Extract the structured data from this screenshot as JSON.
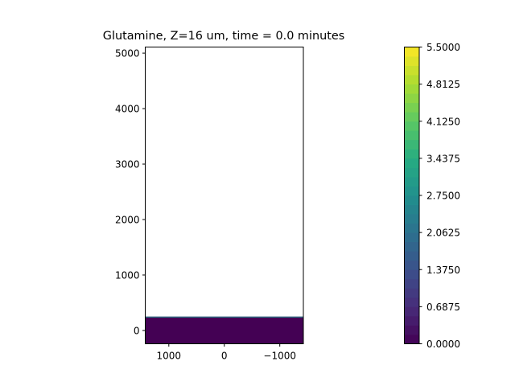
{
  "chart_data": [
    {
      "type": "heatmap",
      "title": "Glutamine, Z=16 um, time = 0.0 minutes",
      "xlabel": "",
      "ylabel": "",
      "x_axis_inverted": true,
      "xlim": [
        1425,
        -1425
      ],
      "ylim": [
        -240,
        5110
      ],
      "x_ticks": [
        1000,
        0,
        -1000
      ],
      "x_tick_labels": [
        "1000",
        "0",
        "−1000"
      ],
      "y_ticks": [
        0,
        1000,
        2000,
        3000,
        4000,
        5000
      ],
      "y_tick_labels": [
        "0",
        "1000",
        "2000",
        "3000",
        "4000",
        "5000"
      ],
      "filled_region": {
        "y_min": -240,
        "y_max": 250,
        "value": 0.0
      },
      "boundary_value": 2.75,
      "colormap": "viridis",
      "grid": false
    },
    {
      "type": "colorbar",
      "range": [
        0.0,
        5.5
      ],
      "levels": 32,
      "tick_values": [
        0.0,
        0.6875,
        1.375,
        2.0625,
        2.75,
        3.4375,
        4.125,
        4.8125,
        5.5
      ],
      "tick_labels": [
        "0.0000",
        "0.6875",
        "1.3750",
        "2.0625",
        "2.7500",
        "3.4375",
        "4.1250",
        "4.8125",
        "5.5000"
      ]
    }
  ]
}
